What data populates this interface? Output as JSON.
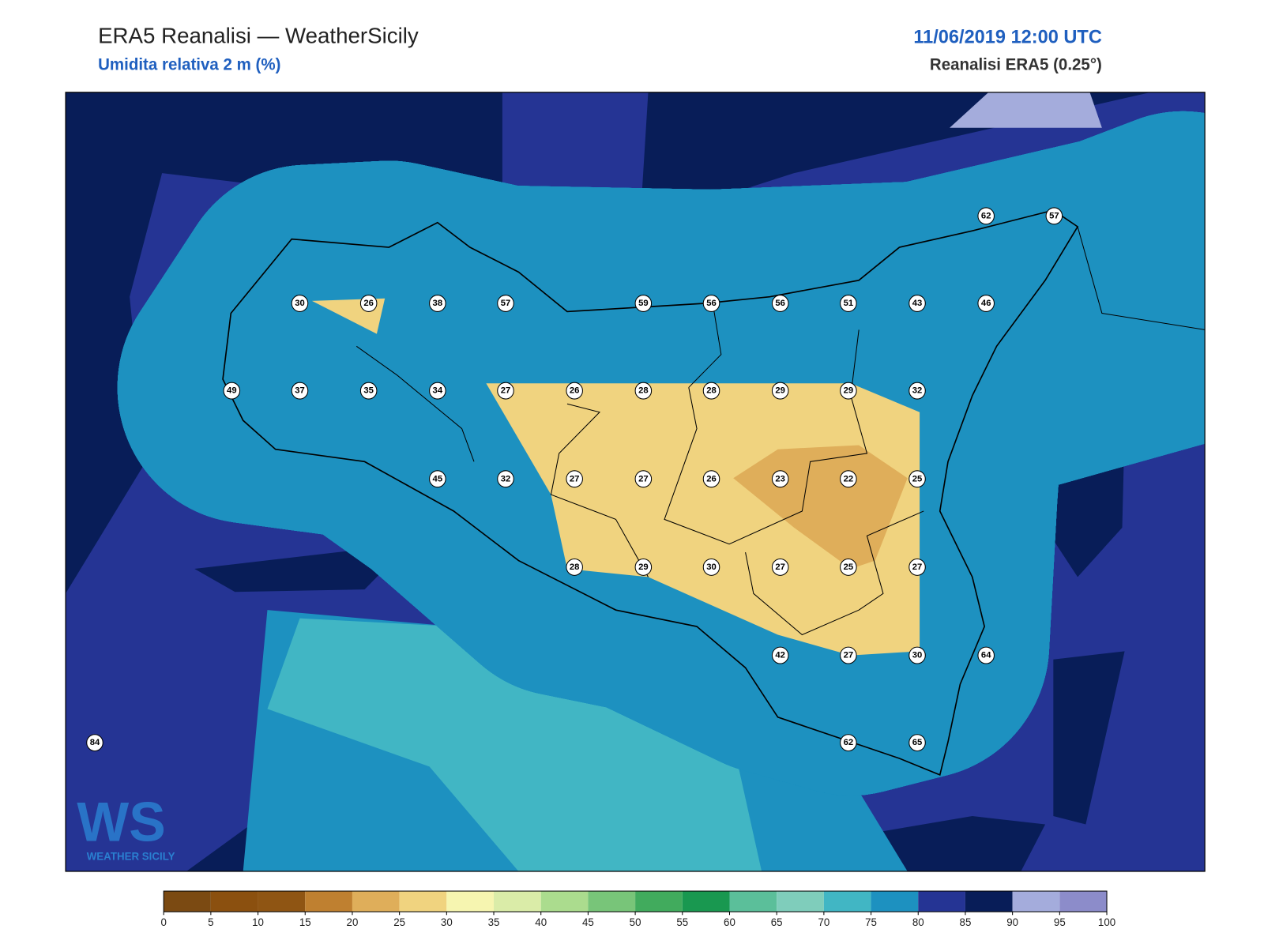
{
  "header": {
    "title": "ERA5 Reanalisi — WeatherSicily",
    "subtitle": "Umidita relativa 2 m (%)",
    "datetime": "11/06/2019 12:00 UTC",
    "source": "Reanalisi ERA5 (0.25°)"
  },
  "logo": {
    "mark": "WS",
    "text": "WEATHER SICILY"
  },
  "stations": [
    30,
    26,
    38,
    57,
    59,
    56,
    56,
    51,
    43,
    46,
    62,
    57,
    49,
    37,
    35,
    34,
    27,
    26,
    28,
    28,
    29,
    29,
    32,
    45,
    32,
    27,
    27,
    26,
    23,
    22,
    25,
    28,
    29,
    30,
    27,
    25,
    27,
    42,
    27,
    30,
    64,
    62,
    65,
    84
  ],
  "colorbar": {
    "ticks": [
      0,
      5,
      10,
      15,
      20,
      25,
      30,
      35,
      40,
      45,
      50,
      55,
      60,
      65,
      70,
      75,
      80,
      85,
      90,
      95,
      100
    ],
    "colors": [
      "#7b4a12",
      "#8b500f",
      "#8f5513",
      "#bf8030",
      "#dfae5a",
      "#f0d37f",
      "#f6f5b0",
      "#daeca8",
      "#abdc8e",
      "#78c579",
      "#41ab5d",
      "#199850",
      "#5bbf9a",
      "#7fcdbb",
      "#41b6c4",
      "#1d91c0",
      "#253494",
      "#081d58",
      "#a4acdc",
      "#8c8cca"
    ]
  }
}
